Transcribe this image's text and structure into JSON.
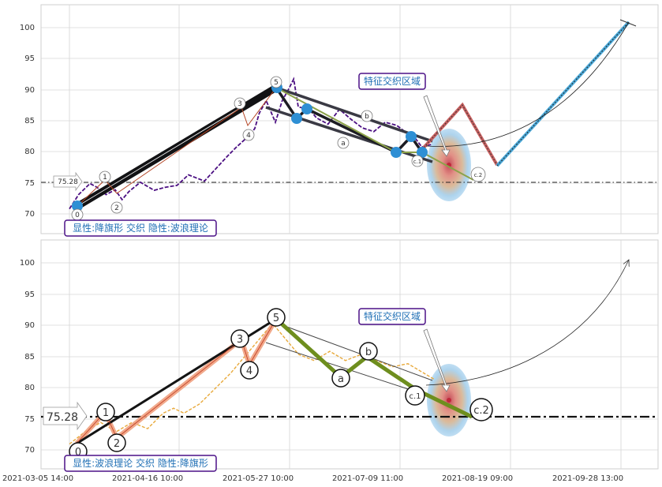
{
  "chart_data": [
    {
      "type": "line",
      "panel": "top",
      "title": "",
      "xlabel": "",
      "ylabel": "",
      "ylim": [
        66.5,
        103.5
      ],
      "yticks": [
        70,
        75,
        80,
        85,
        90,
        95,
        100
      ],
      "grid": true,
      "price_level": 75.28,
      "price_level_label": "75.28",
      "annotation_box": "特征交织区域",
      "legend_box": "显性:降旗形 交织 隐性:波浪理论",
      "wave_labels": [
        {
          "label": "0",
          "x": "2021-03-05 14:00",
          "y": 71.3
        },
        {
          "label": "1",
          "x": "2021-03-23 10:00",
          "y": 75.6
        },
        {
          "label": "2",
          "x": "2021-03-30 10:00",
          "y": 72.5
        },
        {
          "label": "3",
          "x": "2021-05-17 10:00",
          "y": 88.0
        },
        {
          "label": "4",
          "x": "2021-05-20 10:00",
          "y": 84.0
        },
        {
          "label": "5",
          "x": "2021-05-27 10:00",
          "y": 90.6
        },
        {
          "label": "a",
          "x": "2021-07-03 10:00",
          "y": 81.3
        },
        {
          "label": "b",
          "x": "2021-07-12 10:00",
          "y": 85.6
        },
        {
          "label": "c.1",
          "x": "2021-07-30 10:00",
          "y": 78.6
        },
        {
          "label": "c.2",
          "x": "2021-08-21 10:00",
          "y": 76.4
        }
      ],
      "series": [
        {
          "values": [
            [
              0,
              70.5
            ],
            [
              4,
              72.8
            ],
            [
              9,
              74.6
            ],
            [
              12,
              74.0
            ],
            [
              16,
              72.8
            ],
            [
              20,
              73.6
            ],
            [
              23,
              72.0
            ],
            [
              26,
              73.3
            ],
            [
              31,
              74.8
            ],
            [
              37,
              73.5
            ],
            [
              42,
              74.0
            ],
            [
              47,
              74.3
            ],
            [
              52,
              76.0
            ],
            [
              59,
              75.0
            ],
            [
              64,
              77.0
            ],
            [
              69,
              79.0
            ],
            [
              73,
              80.5
            ],
            [
              76,
              81.5
            ],
            [
              79,
              82.5
            ],
            [
              81,
              83.5
            ],
            [
              83,
              86.0
            ],
            [
              86,
              88.0
            ],
            [
              90,
              84.5
            ],
            [
              93,
              88.0
            ],
            [
              96,
              90.0
            ],
            [
              98,
              91.5
            ],
            [
              100,
              87.0
            ],
            [
              105,
              86.5
            ],
            [
              108,
              85.2
            ],
            [
              113,
              84.2
            ],
            [
              118,
              86.6
            ],
            [
              123,
              85.0
            ],
            [
              128,
              83.6
            ],
            [
              133,
              83.0
            ],
            [
              138,
              84.5
            ],
            [
              143,
              84.0
            ],
            [
              148,
              82.6
            ],
            [
              151,
              82.0
            ],
            [
              154,
              80.5
            ],
            [
              158,
              80.9
            ]
          ]
        },
        {
          "values": [
            [
              0,
              71.2
            ],
            [
              54,
              90.3
            ],
            [
              84,
              80.0
            ],
            [
              89,
              79.4
            ],
            [
              92,
              78.0
            ]
          ]
        },
        {
          "values": [
            [
              0,
              71.2
            ],
            [
              46,
              90.1
            ]
          ]
        },
        {
          "values": [
            [
              60,
              90.4
            ],
            [
              82,
              80.9
            ],
            [
              95,
              80.3
            ]
          ]
        },
        {
          "values": [
            [
              70,
              86.8
            ],
            [
              99,
              80.0
            ]
          ]
        },
        {
          "values": [
            [
              92,
              80.3
            ],
            [
              102,
              84.2
            ],
            [
              109,
              79.3
            ],
            [
              116,
              85.6
            ],
            [
              122,
              80.5
            ]
          ]
        },
        {
          "values": [
            [
              122,
              77.6
            ],
            [
              144,
              105.0
            ]
          ]
        },
        {
          "values": [
            [
              0,
              71.2
            ],
            [
              20,
              71.3
            ],
            [
              26,
              72.3
            ],
            [
              30,
              74.5
            ],
            [
              35,
              76.4
            ]
          ]
        }
      ],
      "pivots": [
        {
          "x": "2021-03-06 10:00",
          "y": 71.3
        },
        {
          "x": "2021-05-27 14:00",
          "y": 90.6
        },
        {
          "x": "2021-06-01 10:00",
          "y": 85.4
        },
        {
          "x": "2021-06-04 10:00",
          "y": 87.0
        },
        {
          "x": "2021-07-14 10:00",
          "y": 79.9
        },
        {
          "x": "2021-07-17 10:00",
          "y": 82.4
        },
        {
          "x": "2021-07-19 10:00",
          "y": 79.7
        }
      ]
    },
    {
      "type": "line",
      "panel": "bottom",
      "title": "",
      "xlabel": "",
      "ylabel": "",
      "ylim": [
        66.5,
        103.5
      ],
      "yticks": [
        70,
        75,
        80,
        85,
        90,
        95,
        100
      ],
      "xtick_labels": [
        "2021-03-05 14:00",
        "2021-04-16 10:00",
        "2021-05-27 10:00",
        "2021-07-09 11:00",
        "2021-08-19 09:00",
        "2021-09-28 13:00"
      ],
      "grid": true,
      "price_level": 75.28,
      "price_level_label": "75.28",
      "annotation_box": "特征交织区域",
      "legend_box": "显性:波浪理论 交织 隐性:降旗形",
      "wave_labels": [
        {
          "label": "0",
          "x": "2021-03-05 14:00",
          "y": 69.8
        },
        {
          "label": "1",
          "x": "2021-03-20 10:00",
          "y": 76.0
        },
        {
          "label": "2",
          "x": "2021-03-23 10:00",
          "y": 71.2
        },
        {
          "label": "3",
          "x": "2021-05-16 10:00",
          "y": 88.0
        },
        {
          "label": "4",
          "x": "2021-05-20 10:00",
          "y": 82.6
        },
        {
          "label": "5",
          "x": "2021-05-27 10:00",
          "y": 91.0
        },
        {
          "label": "a",
          "x": "2021-06-30 10:00",
          "y": 81.5
        },
        {
          "label": "b",
          "x": "2021-07-09 10:00",
          "y": 85.8
        },
        {
          "label": "c.1",
          "x": "2021-07-24 10:00",
          "y": 78.7
        },
        {
          "label": "c.2",
          "x": "2021-08-21 10:00",
          "y": 76.4
        }
      ],
      "series": [
        {
          "values": [
            [
              0,
              70.5
            ],
            [
              6,
              72.5
            ],
            [
              12,
              74.0
            ],
            [
              18,
              72.5
            ],
            [
              24,
              74.0
            ],
            [
              30,
              73.0
            ],
            [
              36,
              75.5
            ],
            [
              40,
              76.3
            ],
            [
              44,
              75.5
            ],
            [
              50,
              77.0
            ],
            [
              56,
              79.5
            ],
            [
              62,
              82.0
            ],
            [
              66,
              84.0
            ],
            [
              70,
              86.0
            ],
            [
              74,
              88.0
            ],
            [
              78,
              90.0
            ],
            [
              82,
              88.0
            ],
            [
              88,
              85.0
            ],
            [
              94,
              84.0
            ],
            [
              100,
              85.5
            ],
            [
              106,
              84.0
            ],
            [
              112,
              85.0
            ],
            [
              118,
              84.0
            ],
            [
              124,
              83.0
            ],
            [
              130,
              83.5
            ],
            [
              136,
              82.0
            ],
            [
              140,
              81.0
            ]
          ]
        },
        {
          "values": [
            [
              0,
              70.5
            ],
            [
              18,
              75.5
            ],
            [
              23,
              71.5
            ],
            [
              78,
              88.0
            ],
            [
              83,
              83.0
            ],
            [
              90,
              90.6
            ]
          ]
        },
        {
          "values": [
            [
              90,
              90.6
            ],
            [
              104,
              81.5
            ],
            [
              112,
              85.5
            ],
            [
              126,
              78.4
            ],
            [
              146,
              77.3
            ]
          ]
        }
      ]
    }
  ]
}
